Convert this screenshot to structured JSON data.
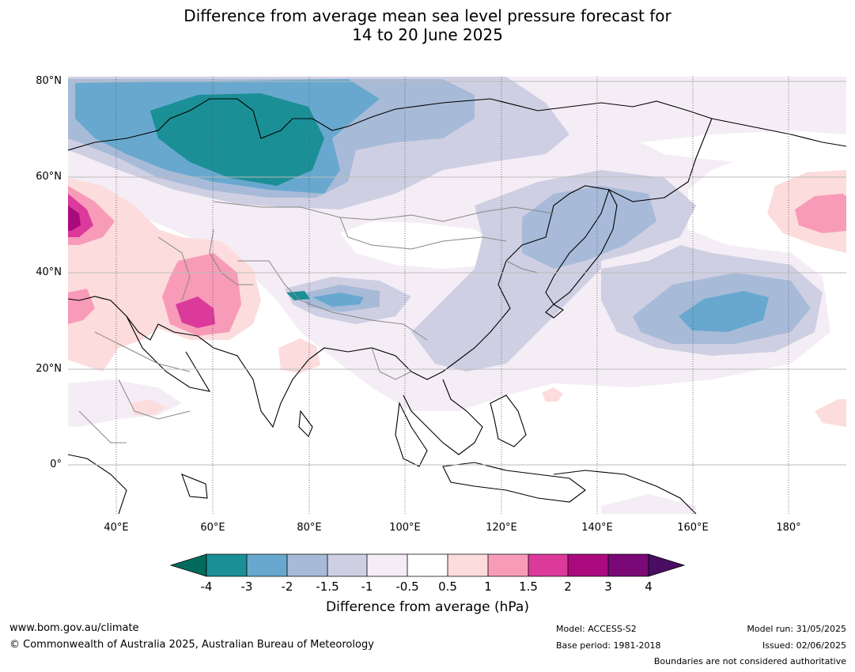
{
  "title": {
    "line1": "Difference from average mean sea level pressure forecast for",
    "line2": "14 to 20 June 2025"
  },
  "map": {
    "lat_labels": [
      "80°N",
      "60°N",
      "40°N",
      "20°N",
      "0°"
    ],
    "lon_labels": [
      "40°E",
      "60°E",
      "80°E",
      "100°E",
      "120°E",
      "140°E",
      "160°E",
      "180°"
    ],
    "extent": {
      "lon_min": 30,
      "lon_max": 192,
      "lat_min": -10,
      "lat_max": 81
    }
  },
  "colorbar": {
    "tick_labels": [
      "-4",
      "-3",
      "-2",
      "-1.5",
      "-1",
      "-0.5",
      "0.5",
      "1",
      "1.5",
      "2",
      "3",
      "4"
    ],
    "colors": {
      "below_min": "#006b5c",
      "bins": [
        "#1b8f96",
        "#68a8cf",
        "#a7bbd8",
        "#cfcfe3",
        "#f4edf5",
        "#ffffff",
        "#fcdcdc",
        "#f79bb8",
        "#db3a9b",
        "#ab0a7e",
        "#7a0876"
      ],
      "above_max": "#4a0d63"
    },
    "title": "Difference from average (hPa)"
  },
  "footer": {
    "url": "www.bom.gov.au/climate",
    "copyright": "© Commonwealth of Australia 2025, Australian Bureau of Meteorology",
    "model": "Model: ACCESS-S2",
    "base_period": "Base period: 1981-2018",
    "model_run": "Model run: 31/05/2025",
    "issued": "Issued: 02/06/2025",
    "disclaimer": "Boundaries are not considered authoritative"
  }
}
